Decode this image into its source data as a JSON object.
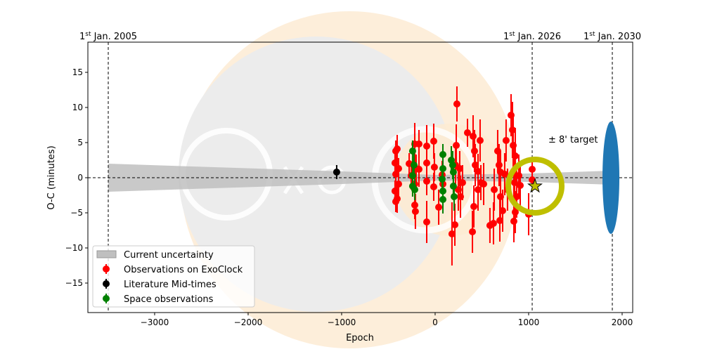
{
  "chart_data": {
    "type": "scatter",
    "xlabel": "Epoch",
    "ylabel": "O-C (minutes)",
    "xlim": [
      -3714,
      2113
    ],
    "ylim": [
      -19.2,
      19.3
    ],
    "xticks": [
      -3000,
      -2000,
      -1000,
      0,
      1000,
      2000
    ],
    "xtick_labels": [
      "−3000",
      "−2000",
      "−1000",
      "0",
      "1000",
      "2000"
    ],
    "yticks": [
      -15,
      -10,
      -5,
      0,
      5,
      10,
      15
    ],
    "ytick_labels": [
      "−15",
      "−10",
      "−5",
      "0",
      "5",
      "10",
      "15"
    ],
    "grid": false,
    "date_markers": [
      {
        "epoch": -3496,
        "num": "1",
        "sup": "st",
        "rest": " Jan. 2005"
      },
      {
        "epoch": 1038,
        "num": "1",
        "sup": "st",
        "rest": " Jan. 2026"
      },
      {
        "epoch": 1895,
        "num": "1",
        "sup": "st",
        "rest": " Jan. 2030"
      }
    ],
    "uncertainty_band": {
      "x": [
        -3496,
        -1000,
        0,
        1000,
        1895
      ],
      "half_width": [
        2.0,
        0.9,
        0.4,
        0.6,
        1.0
      ],
      "color": "#bfbfbf"
    },
    "target": {
      "epoch": 1068,
      "oc": -1.2,
      "label": "± 8' target",
      "ring_color": "#bfbf00",
      "star_color": "#bfbf00"
    },
    "future_window": {
      "epoch": 1880,
      "oc": 0,
      "half_height": 8,
      "color": "#1f77b4"
    },
    "legend": {
      "placement": "lower-left",
      "entries": [
        {
          "label": "Current uncertainty",
          "kind": "band",
          "color": "#bfbfbf"
        },
        {
          "label": "Observations on ExoClock",
          "kind": "point",
          "color": "#ff0000"
        },
        {
          "label": "Literature Mid-times",
          "kind": "point",
          "color": "#000000"
        },
        {
          "label": "Space observations",
          "kind": "point",
          "color": "#008000"
        }
      ]
    },
    "series": [
      {
        "name": "Observations on ExoClock",
        "color": "#ff0000",
        "points": [
          [
            -421,
            3.8,
            1.5
          ],
          [
            -406,
            4.1,
            2
          ],
          [
            -429,
            2.1,
            2
          ],
          [
            -391,
            1.3,
            1.5
          ],
          [
            -421,
            0.5,
            2
          ],
          [
            -429,
            -1.9,
            1.5
          ],
          [
            -406,
            -3,
            2
          ],
          [
            -421,
            -3.4,
            1.5
          ],
          [
            -391,
            -0.9,
            2
          ],
          [
            -278,
            2,
            1.5
          ],
          [
            -256,
            0.3,
            2
          ],
          [
            -218,
            -0.9,
            2.5
          ],
          [
            -218,
            -3.9,
            2
          ],
          [
            -211,
            -4.8,
            2.5
          ],
          [
            -218,
            4.8,
            3
          ],
          [
            -173,
            4.8,
            2
          ],
          [
            -173,
            1.2,
            2.5
          ],
          [
            -203,
            1.3,
            2
          ],
          [
            -90,
            4.5,
            3
          ],
          [
            -90,
            2.1,
            2
          ],
          [
            -90,
            -0.5,
            2
          ],
          [
            -90,
            -6.3,
            3
          ],
          [
            -15,
            5.2,
            2.5
          ],
          [
            -8,
            1.5,
            2
          ],
          [
            -15,
            -1.3,
            2
          ],
          [
            38,
            -4.2,
            2.5
          ],
          [
            75,
            0.4,
            2
          ],
          [
            83,
            -0.9,
            3
          ],
          [
            233,
            10.5,
            2.5
          ],
          [
            226,
            4.6,
            3
          ],
          [
            218,
            1.8,
            3
          ],
          [
            180,
            -8,
            4.5
          ],
          [
            211,
            -6.7,
            3
          ],
          [
            248,
            -1.7,
            3
          ],
          [
            271,
            -2.7,
            3
          ],
          [
            263,
            1.3,
            2.5
          ],
          [
            293,
            -0.7,
            2.5
          ],
          [
            346,
            6.4,
            2
          ],
          [
            406,
            5.9,
            3
          ],
          [
            421,
            3.8,
            3
          ],
          [
            429,
            1.8,
            3
          ],
          [
            399,
            -7.7,
            3
          ],
          [
            414,
            -4.1,
            3
          ],
          [
            459,
            -1.7,
            3
          ],
          [
            481,
            5.3,
            3
          ],
          [
            459,
            0.9,
            2.5
          ],
          [
            489,
            -0.7,
            2.5
          ],
          [
            519,
            -0.9,
            3
          ],
          [
            586,
            -6.8,
            2.5
          ],
          [
            624,
            -6.5,
            3
          ],
          [
            632,
            -1.7,
            3
          ],
          [
            669,
            3.8,
            3
          ],
          [
            684,
            1.8,
            3
          ],
          [
            699,
            -2.7,
            3
          ],
          [
            699,
            0.8,
            3
          ],
          [
            722,
            -4.7,
            3
          ],
          [
            692,
            -6.1,
            3
          ],
          [
            744,
            0.5,
            3
          ],
          [
            759,
            5.3,
            3
          ],
          [
            774,
            -1.7,
            3
          ],
          [
            812,
            8.9,
            3
          ],
          [
            827,
            6.8,
            4
          ],
          [
            835,
            4.6,
            4
          ],
          [
            857,
            3.1,
            4
          ],
          [
            842,
            0.9,
            3.5
          ],
          [
            850,
            -0.7,
            3.5
          ],
          [
            872,
            -2.7,
            3
          ],
          [
            857,
            -4.9,
            3
          ],
          [
            842,
            -6.2,
            3
          ],
          [
            895,
            0.3,
            3
          ],
          [
            910,
            -1.1,
            3
          ],
          [
            1038,
            1.2,
            1
          ],
          [
            1038,
            -0.3,
            1
          ],
          [
            1000,
            -5.2,
            3
          ]
        ]
      },
      {
        "name": "Literature Mid-times",
        "color": "#000000",
        "points": [
          [
            -1053,
            0.8,
            1
          ]
        ]
      },
      {
        "name": "Space observations",
        "color": "#008000",
        "points": [
          [
            -241,
            3.8,
            1.5
          ],
          [
            -226,
            1.8,
            2
          ],
          [
            -241,
            0.3,
            2
          ],
          [
            -241,
            -1.2,
            1.5
          ],
          [
            -218,
            -1.7,
            1.5
          ],
          [
            83,
            3.3,
            1.5
          ],
          [
            83,
            1.3,
            2
          ],
          [
            75,
            -0.2,
            1.5
          ],
          [
            83,
            -1.9,
            1.5
          ],
          [
            83,
            -3.1,
            2
          ],
          [
            188,
            1.8,
            2
          ],
          [
            195,
            0.8,
            2
          ],
          [
            195,
            -1.2,
            2
          ],
          [
            203,
            -2.7,
            2
          ],
          [
            173,
            2.5,
            2
          ]
        ]
      }
    ]
  }
}
